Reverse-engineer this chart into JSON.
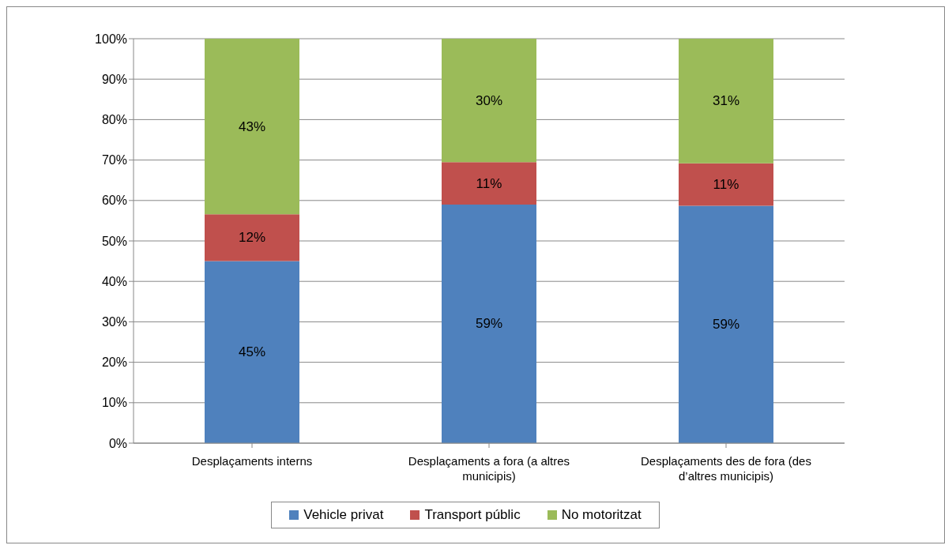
{
  "chart_data": {
    "type": "bar",
    "stacked": true,
    "categories": [
      "Desplaçaments interns",
      "Desplaçaments a fora (a altres municipis)",
      "Desplaçaments des de fora (des d’altres municipis)"
    ],
    "series": [
      {
        "name": "Vehicle privat",
        "color": "#4f81bd",
        "values": [
          45.0,
          59.0,
          58.7
        ],
        "value_labels": [
          "45%",
          "59%",
          "59%"
        ]
      },
      {
        "name": "Transport públic",
        "color": "#c0504d",
        "values": [
          11.6,
          10.5,
          10.5
        ],
        "value_labels": [
          "12%",
          "11%",
          "11%"
        ]
      },
      {
        "name": "No motoritzat",
        "color": "#9bbb59",
        "values": [
          43.4,
          30.5,
          30.8
        ],
        "value_labels": [
          "43%",
          "30%",
          "31%"
        ]
      }
    ],
    "ylim": [
      0,
      100
    ],
    "yticks": [
      {
        "value": 0,
        "label": "0%"
      },
      {
        "value": 10,
        "label": "10%"
      },
      {
        "value": 20,
        "label": "20%"
      },
      {
        "value": 30,
        "label": "30%"
      },
      {
        "value": 40,
        "label": "40%"
      },
      {
        "value": 50,
        "label": "50%"
      },
      {
        "value": 60,
        "label": "60%"
      },
      {
        "value": 70,
        "label": "70%"
      },
      {
        "value": 80,
        "label": "80%"
      },
      {
        "value": 90,
        "label": "90%"
      },
      {
        "value": 100,
        "label": "100%"
      }
    ],
    "grid": "y",
    "legend": "bottom"
  }
}
